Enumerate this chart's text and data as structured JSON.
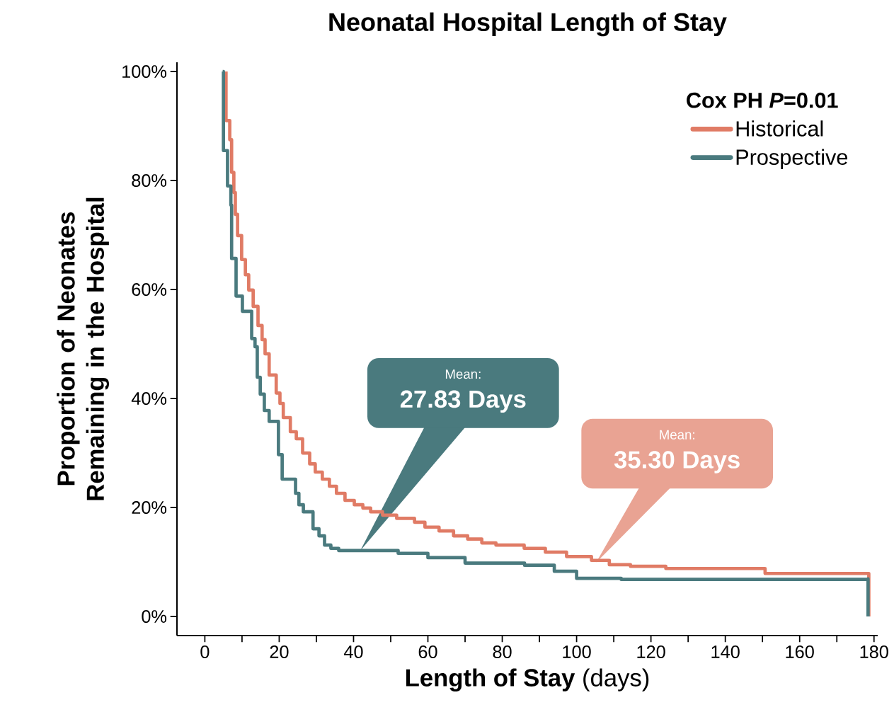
{
  "chart_data": {
    "type": "step",
    "title": "Neonatal Hospital Length of Stay",
    "xlabel": "**Length of Stay** (days)",
    "ylabel": "Proportion of Neonates Remaining in the Hospital",
    "legend_title": "Cox PH *P*=0.01",
    "legend": "top right",
    "xlim": [
      -7.5,
      181
    ],
    "ylim": [
      -3.5,
      101.7
    ],
    "xticks": [
      0,
      {
        "value": 10,
        "label": null
      },
      20,
      {
        "value": 30,
        "label": null
      },
      40,
      {
        "value": 50,
        "label": null
      },
      60,
      {
        "value": 70,
        "label": null
      },
      80,
      {
        "value": 90,
        "label": null
      },
      100,
      {
        "value": 110,
        "label": null
      },
      120,
      {
        "value": 130,
        "label": null
      },
      140,
      {
        "value": 150,
        "label": null
      },
      160,
      {
        "value": 170,
        "label": null
      },
      180
    ],
    "yticks": [
      {
        "value": 0,
        "label": "0%"
      },
      {
        "value": 20,
        "label": "20%"
      },
      {
        "value": 40,
        "label": "40%"
      },
      {
        "value": 60,
        "label": "60%"
      },
      {
        "value": 80,
        "label": "80%"
      },
      {
        "value": 100,
        "label": "100%"
      }
    ],
    "series": [
      {
        "name": "Historical",
        "color": "#e07b65",
        "x": [
          5.7,
          5.7,
          6.7,
          7.2,
          7.8,
          8.2,
          8.8,
          9.9,
          10.9,
          11.8,
          13,
          14.3,
          15.4,
          16.2,
          17.3,
          19.2,
          20.2,
          21.1,
          23,
          24.6,
          26.3,
          28.2,
          29.7,
          31.6,
          33.5,
          35.4,
          37.7,
          40.2,
          42.5,
          44.6,
          47.8,
          51.6,
          56.4,
          59.2,
          63,
          66.9,
          70.7,
          74.5,
          78.3,
          85.9,
          91.6,
          97.3,
          104,
          108.8,
          114.5,
          124,
          150.7,
          178.6,
          178.6
        ],
        "values": [
          100,
          91,
          87.5,
          81.5,
          77.8,
          73.8,
          69.9,
          65.5,
          62.7,
          59.9,
          56.9,
          53.4,
          50.8,
          48.2,
          44.3,
          41,
          39.1,
          36.5,
          33.9,
          32.6,
          30,
          28,
          26.5,
          25.2,
          23.9,
          22.6,
          21.3,
          20.5,
          19.9,
          19.2,
          18.6,
          18,
          17.3,
          16.4,
          15.7,
          14.8,
          14.2,
          13.5,
          13.1,
          12.5,
          11.8,
          11,
          10.3,
          9.5,
          9.2,
          8.8,
          7.9,
          7.7,
          0
        ]
      },
      {
        "name": "Prospective",
        "color": "#4a7a7e",
        "x": [
          4.8,
          5,
          6.1,
          7,
          7.2,
          8.4,
          10.1,
          12.6,
          13.5,
          14.1,
          14.9,
          16,
          17.3,
          19.8,
          20.8,
          24.4,
          25.3,
          26.5,
          29.1,
          30.7,
          32.2,
          33.9,
          36,
          52,
          60,
          70,
          86,
          94,
          100,
          112,
          178.4,
          178.4
        ],
        "values": [
          100,
          85.5,
          79,
          75.5,
          65.7,
          58.8,
          56,
          51,
          49.5,
          43.9,
          40.8,
          37.8,
          35.8,
          29.7,
          25.2,
          22.6,
          20.5,
          19.2,
          16.1,
          14.8,
          13.1,
          12.5,
          12.1,
          11.6,
          10.8,
          9.8,
          9.4,
          8.3,
          7,
          6.8,
          6.9,
          0
        ]
      }
    ],
    "annotations": [
      "Mean:",
      "27.83 Days",
      "Mean:",
      "35.30 Days"
    ]
  }
}
